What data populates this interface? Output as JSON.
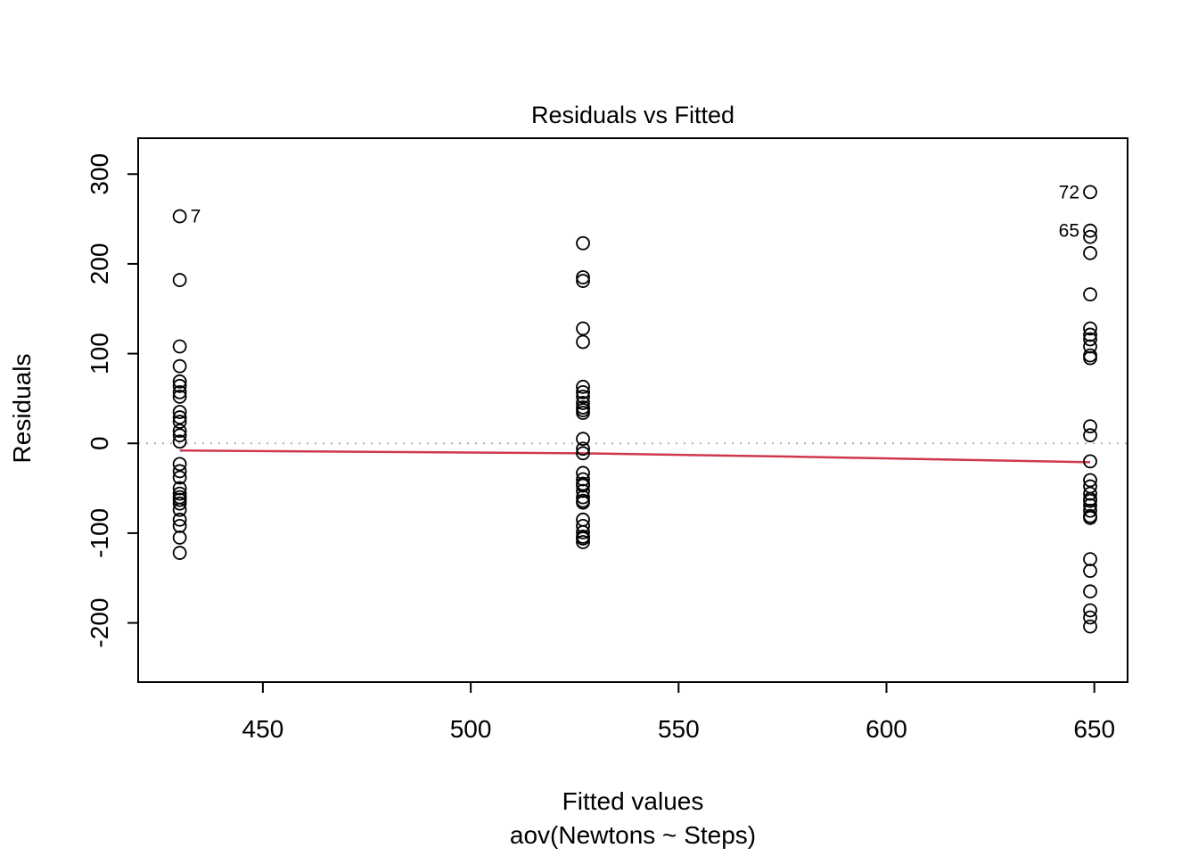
{
  "chart_data": {
    "type": "scatter",
    "title": "Residuals vs Fitted",
    "xlabel": "Fitted values",
    "formula": "aov(Newtons ~ Steps)",
    "ylabel": "Residuals",
    "xlim": [
      420,
      658
    ],
    "ylim": [
      -266,
      340
    ],
    "x_ticks": [
      450,
      500,
      550,
      600,
      650
    ],
    "y_ticks": [
      -200,
      -100,
      0,
      100,
      200,
      300
    ],
    "grid": false,
    "legend": "none",
    "zero_line": {
      "y": 0,
      "style": "dotted",
      "color": "#a8b0b0"
    },
    "smooth_line": {
      "color": "#d0384e",
      "points": [
        [
          430,
          -8
        ],
        [
          527,
          -11
        ],
        [
          580,
          -15
        ],
        [
          649,
          -21
        ]
      ]
    },
    "groups": [
      {
        "fitted": 430,
        "residuals": [
          253,
          182,
          108,
          86,
          69,
          64,
          57,
          52,
          35,
          29,
          24,
          14,
          9,
          2,
          -23,
          -31,
          -38,
          -50,
          -56,
          -60,
          -63,
          -67,
          -74,
          -85,
          -92,
          -105,
          -122
        ]
      },
      {
        "fitted": 527,
        "residuals": [
          223,
          185,
          181,
          128,
          113,
          63,
          57,
          52,
          45,
          40,
          37,
          34,
          5,
          -6,
          -11,
          -33,
          -40,
          -45,
          -47,
          -53,
          -60,
          -64,
          -66,
          -85,
          -92,
          -99,
          -104,
          -106,
          -110
        ]
      },
      {
        "fitted": 649,
        "residuals": [
          280,
          237,
          230,
          212,
          166,
          128,
          121,
          116,
          108,
          98,
          95,
          19,
          9,
          -20,
          -41,
          -48,
          -56,
          -62,
          -64,
          -69,
          -75,
          -81,
          -83,
          -129,
          -142,
          -165,
          -186,
          -194,
          -204
        ]
      }
    ],
    "point_labels": [
      {
        "label": "7",
        "x": 430,
        "y": 253,
        "side": "right"
      },
      {
        "label": "72",
        "x": 649,
        "y": 280,
        "side": "left"
      },
      {
        "label": "65",
        "x": 649,
        "y": 237,
        "side": "left"
      }
    ]
  }
}
